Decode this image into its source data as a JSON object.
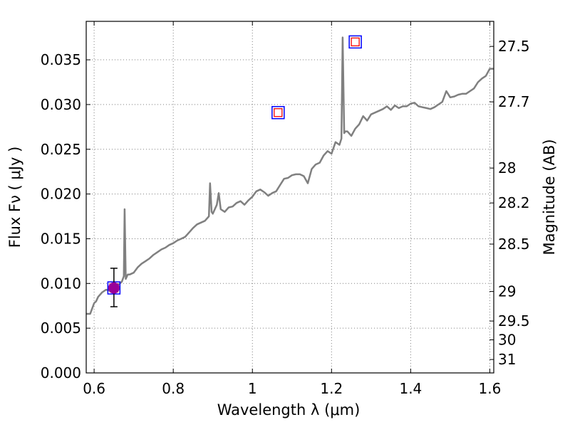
{
  "chart_data": {
    "type": "line",
    "xlabel": "Wavelength  λ (μm)",
    "ylabel_left": "Flux  Fν  ( μJy )",
    "ylabel_right": "Magnitude (AB)",
    "xlim": [
      0.58,
      1.61
    ],
    "ylim": [
      0.0,
      0.0393
    ],
    "grid": true,
    "x_ticks": [
      0.6,
      0.8,
      1.0,
      1.2,
      1.4,
      1.6
    ],
    "x_tick_labels": [
      "0.6",
      "0.8",
      "1",
      "1.2",
      "1.4",
      "1.6"
    ],
    "y_ticks": [
      0.0,
      0.005,
      0.01,
      0.015,
      0.02,
      0.025,
      0.03,
      0.035
    ],
    "y_tick_labels": [
      "0.000",
      "0.005",
      "0.010",
      "0.015",
      "0.020",
      "0.025",
      "0.030",
      "0.035"
    ],
    "right_ticks": [
      {
        "label": "27.5",
        "flux": 0.0365
      },
      {
        "label": "27.7",
        "flux": 0.0303
      },
      {
        "label": "28",
        "flux": 0.0229
      },
      {
        "label": "28.2",
        "flux": 0.019
      },
      {
        "label": "28.5",
        "flux": 0.0144
      },
      {
        "label": "29",
        "flux": 0.0091
      },
      {
        "label": "29.5",
        "flux": 0.0058
      },
      {
        "label": "30",
        "flux": 0.0037
      },
      {
        "label": "31",
        "flux": 0.0015
      }
    ],
    "colors": {
      "spectrum": "#808080",
      "square_outer": "#0000ff",
      "square_inner": "#ff0000",
      "measured_point": "#990099",
      "errorbar": "#000000",
      "grid": "#808080"
    },
    "series": [
      {
        "kind": "spectrum",
        "x": [
          0.58,
          0.59,
          0.6,
          0.605,
          0.61,
          0.62,
          0.63,
          0.64,
          0.65,
          0.66,
          0.67,
          0.675,
          0.677,
          0.68,
          0.685,
          0.69,
          0.7,
          0.71,
          0.72,
          0.73,
          0.74,
          0.75,
          0.76,
          0.77,
          0.78,
          0.79,
          0.8,
          0.81,
          0.82,
          0.83,
          0.84,
          0.85,
          0.86,
          0.87,
          0.88,
          0.89,
          0.893,
          0.897,
          0.9,
          0.905,
          0.91,
          0.915,
          0.92,
          0.93,
          0.94,
          0.95,
          0.96,
          0.97,
          0.98,
          0.99,
          1.0,
          1.01,
          1.02,
          1.03,
          1.04,
          1.05,
          1.06,
          1.07,
          1.08,
          1.09,
          1.1,
          1.11,
          1.12,
          1.13,
          1.14,
          1.15,
          1.16,
          1.17,
          1.18,
          1.19,
          1.2,
          1.21,
          1.22,
          1.225,
          1.228,
          1.232,
          1.235,
          1.24,
          1.25,
          1.26,
          1.27,
          1.28,
          1.29,
          1.3,
          1.31,
          1.32,
          1.33,
          1.34,
          1.35,
          1.36,
          1.37,
          1.38,
          1.39,
          1.4,
          1.41,
          1.42,
          1.43,
          1.44,
          1.45,
          1.46,
          1.47,
          1.48,
          1.49,
          1.5,
          1.51,
          1.52,
          1.53,
          1.54,
          1.55,
          1.56,
          1.57,
          1.58,
          1.59,
          1.6,
          1.61
        ],
        "y": [
          0.0066,
          0.0066,
          0.0078,
          0.008,
          0.0085,
          0.009,
          0.0093,
          0.0092,
          0.0096,
          0.0098,
          0.0102,
          0.0108,
          0.0183,
          0.0105,
          0.011,
          0.011,
          0.0112,
          0.0118,
          0.0122,
          0.0125,
          0.0128,
          0.0132,
          0.0135,
          0.0138,
          0.014,
          0.0143,
          0.0145,
          0.0148,
          0.015,
          0.0152,
          0.0157,
          0.0162,
          0.0166,
          0.0168,
          0.017,
          0.0175,
          0.0212,
          0.018,
          0.0178,
          0.0183,
          0.0188,
          0.0201,
          0.0183,
          0.018,
          0.0185,
          0.0186,
          0.019,
          0.0192,
          0.0188,
          0.0193,
          0.0197,
          0.0203,
          0.0205,
          0.0202,
          0.0198,
          0.0201,
          0.0203,
          0.021,
          0.0217,
          0.0218,
          0.0221,
          0.0222,
          0.0222,
          0.022,
          0.0212,
          0.0228,
          0.0233,
          0.0235,
          0.0243,
          0.0248,
          0.0245,
          0.0258,
          0.0255,
          0.0262,
          0.0375,
          0.0268,
          0.027,
          0.027,
          0.0265,
          0.0273,
          0.0278,
          0.0287,
          0.0282,
          0.0289,
          0.0291,
          0.0293,
          0.0295,
          0.0298,
          0.0294,
          0.0299,
          0.0296,
          0.0298,
          0.0298,
          0.0301,
          0.0302,
          0.0298,
          0.0297,
          0.0296,
          0.0295,
          0.0297,
          0.03,
          0.0303,
          0.0315,
          0.0308,
          0.0309,
          0.0311,
          0.0312,
          0.0312,
          0.0315,
          0.0318,
          0.0325,
          0.0329,
          0.0332,
          0.034,
          0.034
        ]
      }
    ],
    "photometry_squares": [
      {
        "x": 0.65,
        "y": 0.0095
      },
      {
        "x": 1.065,
        "y": 0.0291
      },
      {
        "x": 1.26,
        "y": 0.037
      }
    ],
    "measured_point": {
      "x": 0.65,
      "y": 0.0095,
      "err_low": 0.0074,
      "err_high": 0.0117
    }
  }
}
